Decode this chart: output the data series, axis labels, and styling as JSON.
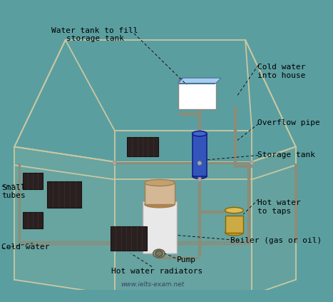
{
  "background_color": "#5b9ea0",
  "watermark": "www.ielts-exam.net",
  "labels": {
    "water_tank_fill": "Water tank to fill\nstorage tank",
    "cold_water_house": "Cold water\ninto house",
    "overflow_pipe": "Overflow pipe",
    "storage_tank": "Storage tank",
    "hot_water_taps": "Hot water\nto taps",
    "small_tubes": "Small\ntubes",
    "cold_water": "Cold water",
    "boiler": "Boiler (gas or oil)",
    "pump": "Pump",
    "hot_water_radiators": "Hot water radiators"
  },
  "house_color": "#c8c8a0",
  "pipe_color": "#8c8c78",
  "rad_color": "#2a2020",
  "storage_tank_color": "#3355cc",
  "water_tank_color": "#aaddff",
  "boiler_body_color": "#d4b896",
  "boiler_base_color": "#e8e8e8",
  "pump_color": "#888866",
  "hot_taps_color": "#ccaa44",
  "label_color": "#000000",
  "fs": 8.0
}
